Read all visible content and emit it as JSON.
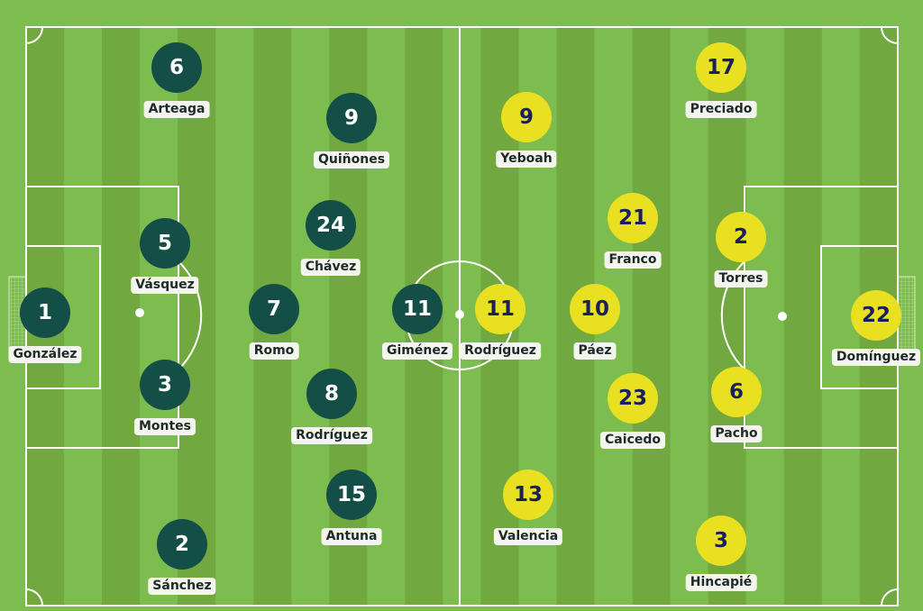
{
  "colors": {
    "pitch_light": "#7dbd4f",
    "pitch_dark": "#71a83f",
    "lines": "#ffffff",
    "home": "#134e47",
    "home_number": "#ffffff",
    "away": "#e8e020",
    "away_number": "#1a1f5e"
  },
  "home": [
    {
      "number": "1",
      "name": "González"
    },
    {
      "number": "5",
      "name": "Vásquez"
    },
    {
      "number": "3",
      "name": "Montes"
    },
    {
      "number": "6",
      "name": "Arteaga"
    },
    {
      "number": "2",
      "name": "Sánchez"
    },
    {
      "number": "9",
      "name": "Quiñones"
    },
    {
      "number": "24",
      "name": "Chávez"
    },
    {
      "number": "7",
      "name": "Romo"
    },
    {
      "number": "8",
      "name": "Rodríguez"
    },
    {
      "number": "15",
      "name": "Antuna"
    },
    {
      "number": "11",
      "name": "Giménez"
    }
  ],
  "away": [
    {
      "number": "11",
      "name": "Rodríguez"
    },
    {
      "number": "9",
      "name": "Yeboah"
    },
    {
      "number": "13",
      "name": "Valencia"
    },
    {
      "number": "10",
      "name": "Páez"
    },
    {
      "number": "21",
      "name": "Franco"
    },
    {
      "number": "23",
      "name": "Caicedo"
    },
    {
      "number": "17",
      "name": "Preciado"
    },
    {
      "number": "2",
      "name": "Torres"
    },
    {
      "number": "6",
      "name": "Pacho"
    },
    {
      "number": "3",
      "name": "Hincapié"
    },
    {
      "number": "22",
      "name": "Domínguez"
    }
  ]
}
